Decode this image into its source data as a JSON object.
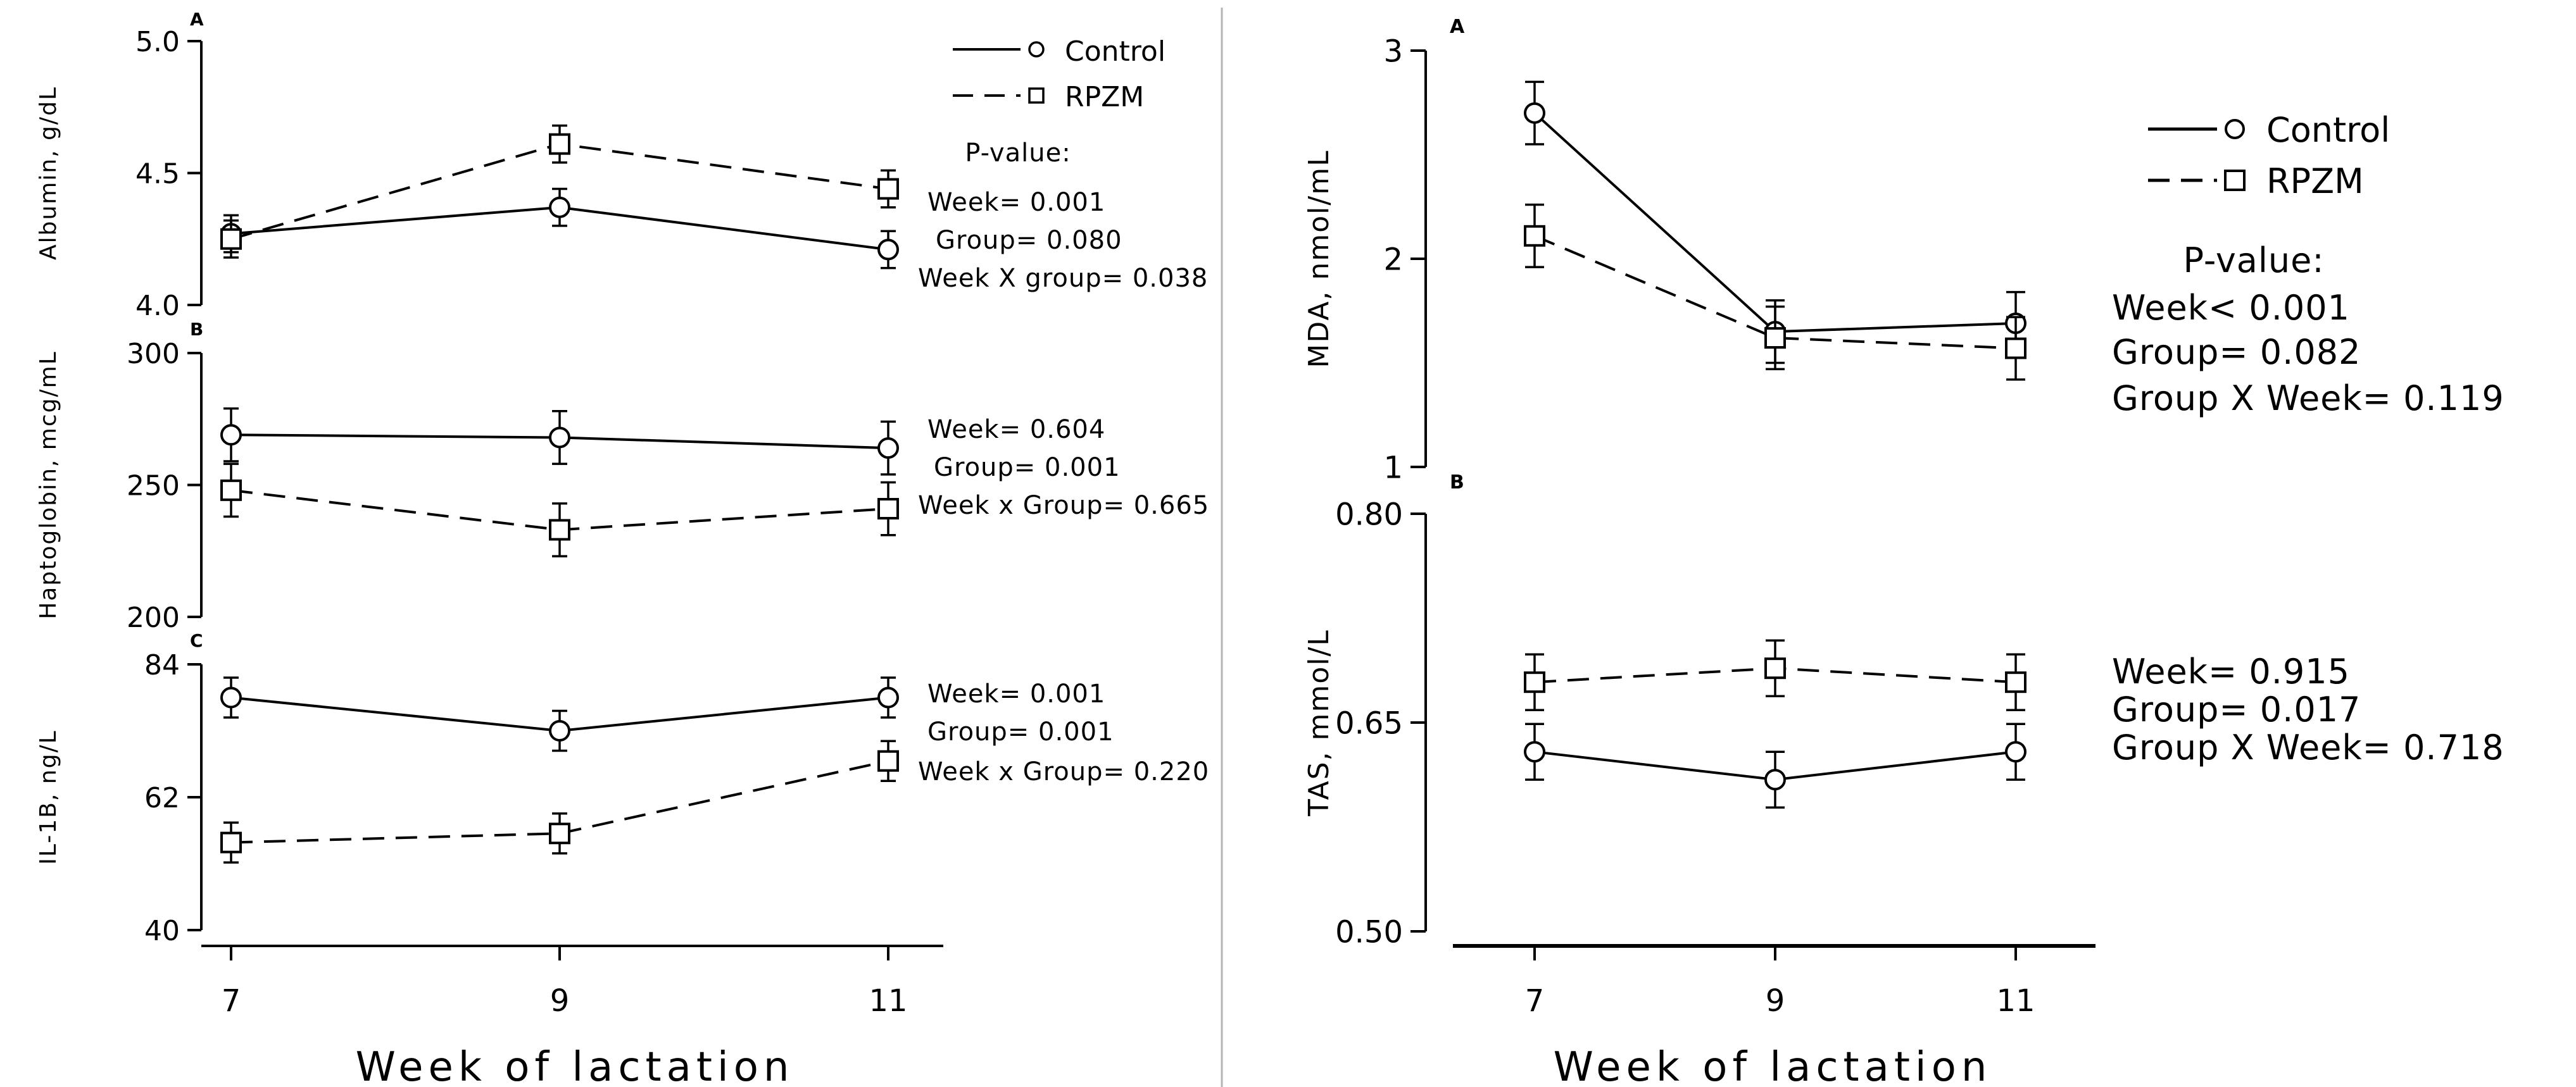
{
  "left_figure": {
    "x_axis": {
      "label": "Week of lactation",
      "ticks": [
        "7",
        "9",
        "11"
      ],
      "values": [
        7,
        9,
        11
      ]
    },
    "legend": {
      "control": "Control",
      "rpzm": "RPZM"
    }
  },
  "right_figure": {
    "x_axis": {
      "label": "Week of lactation",
      "ticks": [
        "7",
        "9",
        "11"
      ],
      "values": [
        7,
        9,
        11
      ]
    },
    "legend": {
      "control": "Control",
      "rpzm": "RPZM"
    }
  },
  "chart_data": [
    {
      "id": "albumin",
      "figure": "left",
      "panel_letter": "A",
      "type": "line",
      "ylabel": "Albumin, g/dL",
      "ylim": [
        4.0,
        5.0
      ],
      "yticks": [
        4.0,
        4.5,
        5.0
      ],
      "ytick_labels": [
        "4.0",
        "4.5",
        "5.0"
      ],
      "x": [
        7,
        9,
        11
      ],
      "series": [
        {
          "name": "Control",
          "marker": "circle",
          "dash": "solid",
          "values": [
            4.27,
            4.37,
            4.21
          ],
          "err": [
            0.07,
            0.07,
            0.07
          ]
        },
        {
          "name": "RPZM",
          "marker": "square",
          "dash": "dashed",
          "values": [
            4.25,
            4.61,
            4.44
          ],
          "err": [
            0.07,
            0.07,
            0.07
          ]
        }
      ],
      "stats": [
        "P-value:",
        "Week= 0.001",
        "Group= 0.080",
        "Week X group= 0.038"
      ]
    },
    {
      "id": "haptoglobin",
      "figure": "left",
      "panel_letter": "B",
      "type": "line",
      "ylabel": "Haptoglobin, mcg/mL",
      "ylim": [
        200,
        300
      ],
      "yticks": [
        200,
        250,
        300
      ],
      "ytick_labels": [
        "200",
        "250",
        "300"
      ],
      "x": [
        7,
        9,
        11
      ],
      "series": [
        {
          "name": "Control",
          "marker": "circle",
          "dash": "solid",
          "values": [
            269,
            268,
            264
          ],
          "err": [
            10,
            10,
            10
          ]
        },
        {
          "name": "RPZM",
          "marker": "square",
          "dash": "dashed",
          "values": [
            248,
            233,
            241
          ],
          "err": [
            10,
            10,
            10
          ]
        }
      ],
      "stats": [
        "Week= 0.604",
        "Group= 0.001",
        "Week x Group= 0.665"
      ]
    },
    {
      "id": "il1b",
      "figure": "left",
      "panel_letter": "C",
      "type": "line",
      "ylabel": "IL-1B, ng/L",
      "ylim": [
        40,
        84
      ],
      "yticks": [
        40,
        62,
        84
      ],
      "ytick_labels": [
        "40",
        "62",
        "84"
      ],
      "x": [
        7,
        9,
        11
      ],
      "series": [
        {
          "name": "Control",
          "marker": "circle",
          "dash": "solid",
          "values": [
            78.5,
            73,
            78.5
          ],
          "err": [
            3.3,
            3.3,
            3.3
          ]
        },
        {
          "name": "RPZM",
          "marker": "square",
          "dash": "dashed",
          "values": [
            54.5,
            56,
            68
          ],
          "err": [
            3.3,
            3.3,
            3.3
          ]
        }
      ],
      "stats": [
        "Week= 0.001",
        "Group= 0.001",
        "Week x Group= 0.220"
      ]
    },
    {
      "id": "mda",
      "figure": "right",
      "panel_letter": "A",
      "type": "line",
      "ylabel": "MDA, nmol/mL",
      "ylim": [
        1,
        3
      ],
      "yticks": [
        1,
        2,
        3
      ],
      "ytick_labels": [
        "1",
        "2",
        "3"
      ],
      "x": [
        7,
        9,
        11
      ],
      "series": [
        {
          "name": "Control",
          "marker": "circle",
          "dash": "solid",
          "values": [
            2.7,
            1.65,
            1.69
          ],
          "err": [
            0.15,
            0.15,
            0.15
          ]
        },
        {
          "name": "RPZM",
          "marker": "square",
          "dash": "dashed",
          "values": [
            2.11,
            1.62,
            1.57
          ],
          "err": [
            0.15,
            0.15,
            0.15
          ]
        }
      ],
      "stats": [
        "P-value:",
        "Week< 0.001",
        "Group= 0.082",
        "Group X Week= 0.119"
      ]
    },
    {
      "id": "tas",
      "figure": "right",
      "panel_letter": "B",
      "type": "line",
      "ylabel": "TAS, mmol/L",
      "ylim": [
        0.5,
        0.8
      ],
      "yticks": [
        0.5,
        0.65,
        0.8
      ],
      "ytick_labels": [
        "0.50",
        "0.65",
        "0.80"
      ],
      "x": [
        7,
        9,
        11
      ],
      "series": [
        {
          "name": "Control",
          "marker": "circle",
          "dash": "solid",
          "values": [
            0.629,
            0.609,
            0.629
          ],
          "err": [
            0.02,
            0.02,
            0.02
          ]
        },
        {
          "name": "RPZM",
          "marker": "square",
          "dash": "dashed",
          "values": [
            0.679,
            0.689,
            0.679
          ],
          "err": [
            0.02,
            0.02,
            0.02
          ]
        }
      ],
      "stats": [
        "Week= 0.915",
        "Group= 0.017",
        "Group X Week= 0.718"
      ]
    }
  ]
}
